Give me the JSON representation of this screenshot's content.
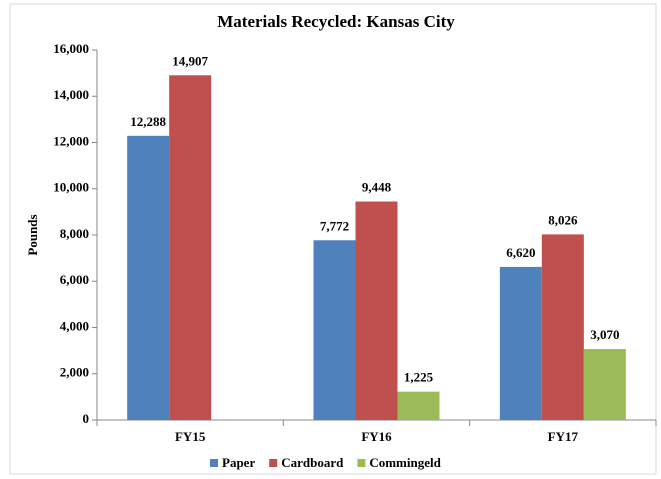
{
  "chart_data": {
    "type": "bar",
    "title": "Materials Recycled: Kansas City",
    "y_label": "Pounds",
    "categories": [
      "FY15",
      "FY16",
      "FY17"
    ],
    "series": [
      {
        "name": "Paper",
        "color": "#4f81bd",
        "values": [
          12288,
          7772,
          6620
        ],
        "value_labels": [
          "12,288",
          "7,772",
          "6,620"
        ]
      },
      {
        "name": "Cardboard",
        "color": "#c0504d",
        "values": [
          14907,
          9448,
          8026
        ],
        "value_labels": [
          "14,907",
          "9,448",
          "8,026"
        ]
      },
      {
        "name": "Commingeld",
        "color": "#9bbb59",
        "values": [
          null,
          1225,
          3070
        ],
        "value_labels": [
          null,
          "1,225",
          "3,070"
        ]
      }
    ],
    "ylim": [
      0,
      16000
    ],
    "yticks": [
      0,
      {
        "value": 2000,
        "label": "2,000"
      },
      {
        "value": 4000,
        "label": "4,000"
      },
      {
        "value": 6000,
        "label": "6,000"
      },
      {
        "value": 8000,
        "label": "8,000"
      },
      {
        "value": 10000,
        "label": "10,000"
      },
      {
        "value": 12000,
        "label": "12,000"
      },
      {
        "value": 14000,
        "label": "14,000"
      },
      {
        "value": 16000,
        "label": "16,000"
      }
    ],
    "grid": false,
    "legend": "bottom"
  }
}
